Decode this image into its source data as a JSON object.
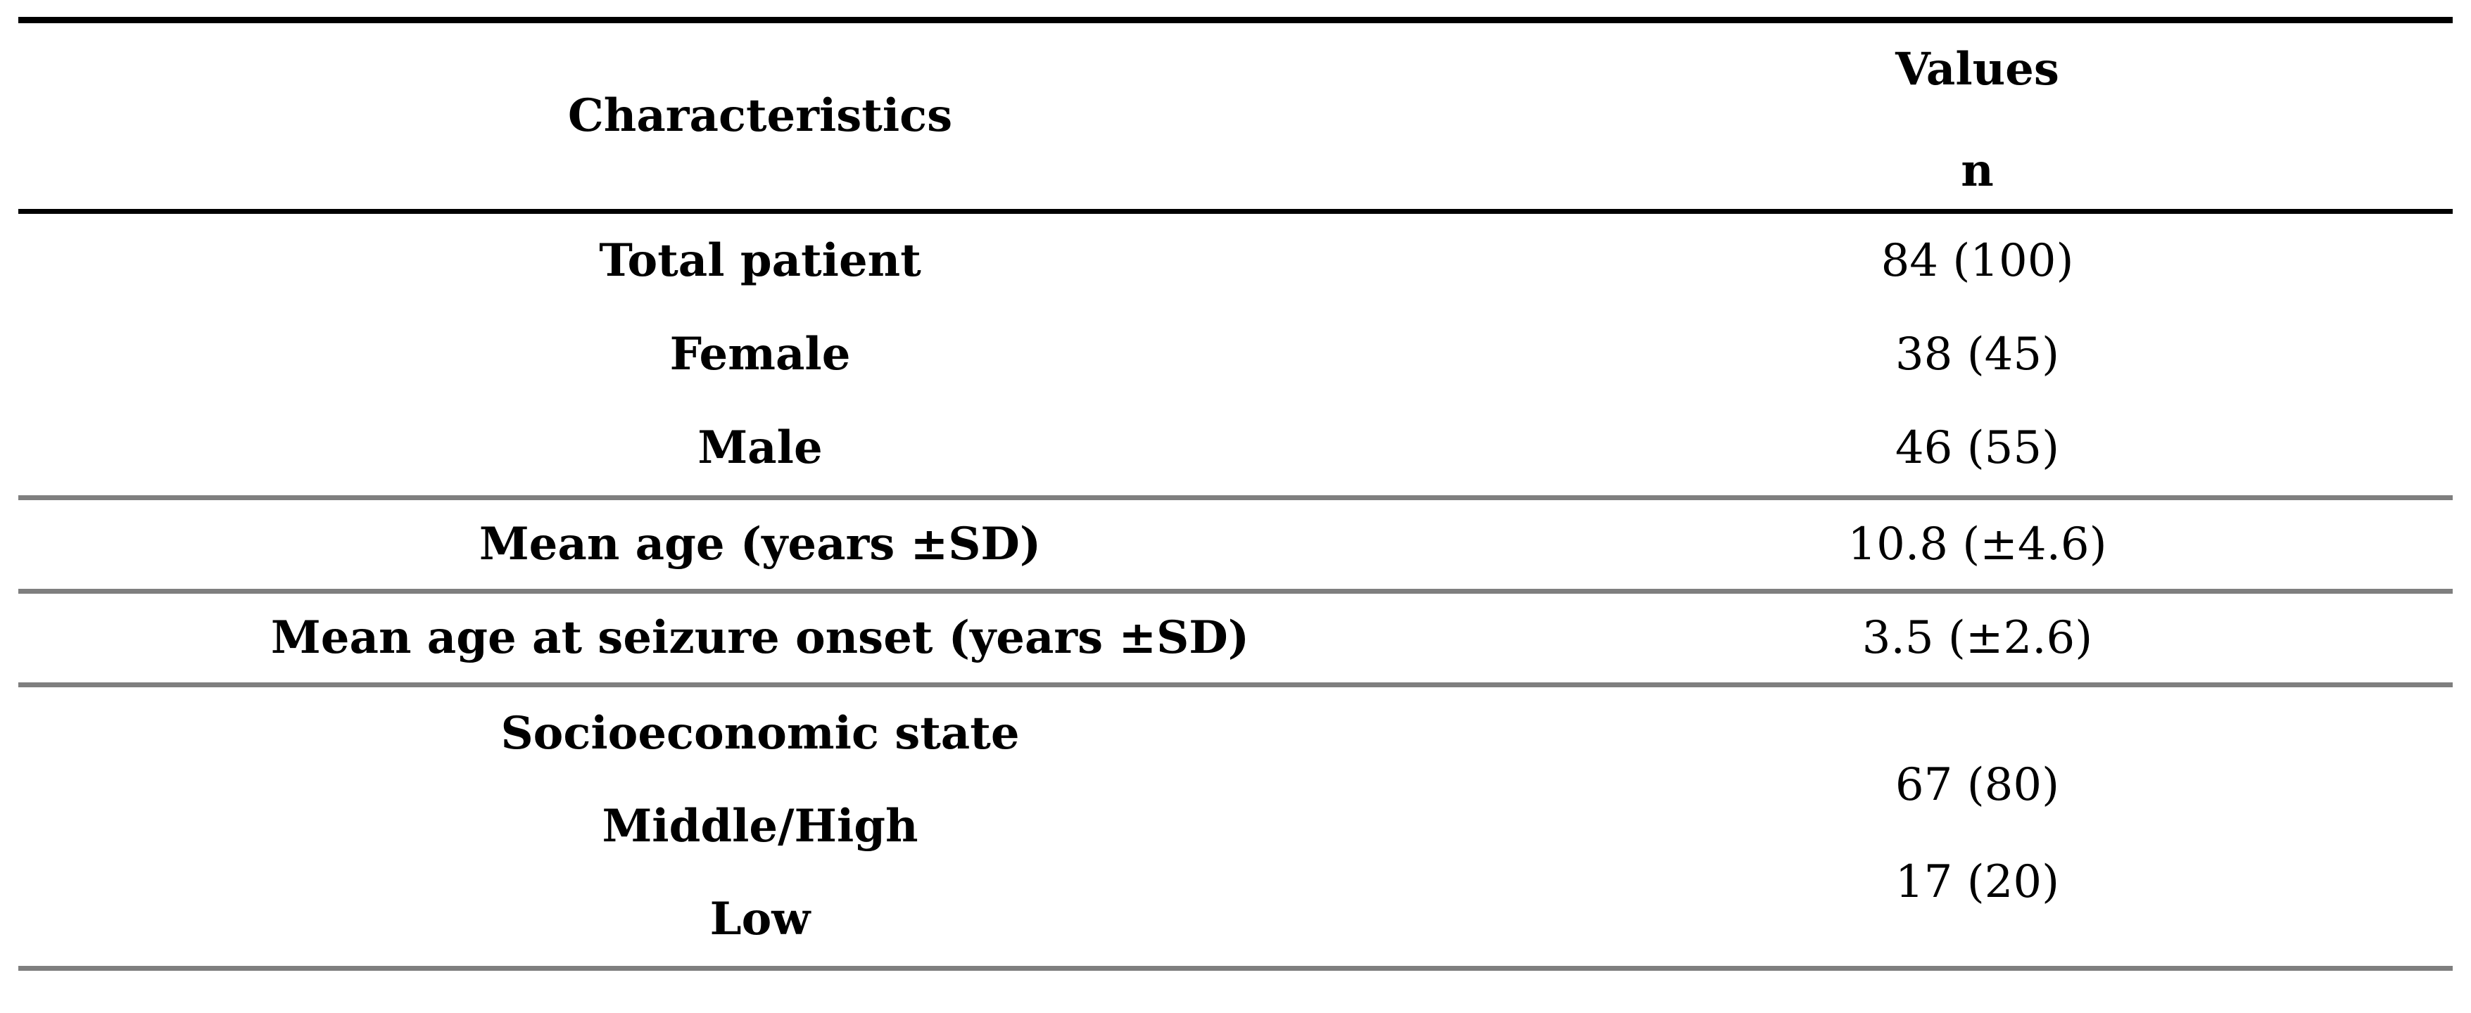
{
  "table": {
    "header": {
      "characteristics": "Characteristics",
      "values_line1": "Values",
      "values_line2": "n"
    },
    "rows_demographics": [
      {
        "label": "Total patient",
        "value": "84 (100)"
      },
      {
        "label": "Female",
        "value": "38 (45)"
      },
      {
        "label": "Male",
        "value": "46 (55)"
      }
    ],
    "row_mean_age": {
      "label": "Mean age (years ±SD)",
      "value": "10.8 (±4.6)"
    },
    "row_seizure_onset": {
      "label": "Mean age at seizure onset (years ±SD)",
      "value": "3.5 (±2.6)"
    },
    "group_socioeconomic": {
      "labels": [
        "Socioeconomic state",
        "Middle/High",
        "Low"
      ],
      "values": [
        "67 (80)",
        "17 (20)"
      ]
    },
    "colors": {
      "rule_black": "#000000",
      "rule_gray": "#7f7f7f",
      "text": "#000000",
      "background": "#ffffff"
    }
  }
}
